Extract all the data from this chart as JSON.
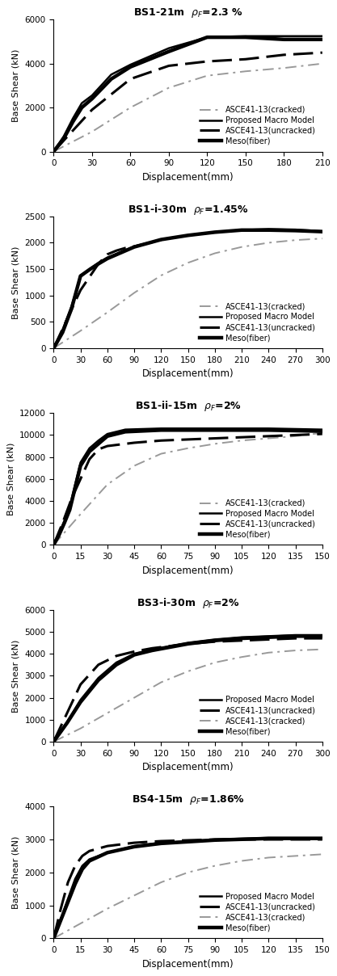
{
  "panels": [
    {
      "title_parts": [
        "BS1-21m  ",
        "2.3 %"
      ],
      "xlim": [
        0,
        210
      ],
      "ylim": [
        0,
        6000
      ],
      "xticks": [
        0,
        30,
        60,
        90,
        120,
        150,
        180,
        210
      ],
      "yticks": [
        0,
        2000,
        4000,
        6000
      ],
      "xlabel": "Displacement(mm)",
      "ylabel": "Base Shear (kN)",
      "legend_order": [
        "cracked",
        "macro",
        "uncracked",
        "meso"
      ],
      "legend_loc": "lower right",
      "curves": {
        "cracked": {
          "x": [
            0,
            30,
            60,
            90,
            120,
            150,
            180,
            210
          ],
          "y": [
            0,
            900,
            2000,
            2900,
            3450,
            3650,
            3800,
            4000
          ]
        },
        "macro": {
          "x": [
            0,
            8,
            15,
            22,
            30,
            45,
            60,
            90,
            120,
            150,
            180,
            210
          ],
          "y": [
            0,
            700,
            1500,
            2200,
            2550,
            3500,
            3950,
            4700,
            5200,
            5250,
            5250,
            5250
          ]
        },
        "uncracked": {
          "x": [
            0,
            30,
            60,
            90,
            120,
            150,
            180,
            210
          ],
          "y": [
            0,
            1900,
            3300,
            3900,
            4100,
            4200,
            4400,
            4500
          ]
        },
        "meso": {
          "x": [
            0,
            8,
            15,
            22,
            30,
            45,
            60,
            90,
            120,
            150,
            180,
            210
          ],
          "y": [
            0,
            600,
            1350,
            2000,
            2400,
            3300,
            3850,
            4550,
            5200,
            5200,
            5100,
            5100
          ]
        }
      }
    },
    {
      "title_parts": [
        "BS1-i-30m  ",
        "1.45%"
      ],
      "xlim": [
        0,
        300
      ],
      "ylim": [
        0,
        2500
      ],
      "xticks": [
        0,
        30,
        60,
        90,
        120,
        150,
        180,
        210,
        240,
        270,
        300
      ],
      "yticks": [
        0,
        500,
        1000,
        1500,
        2000,
        2500
      ],
      "xlabel": "Displacement(mm)",
      "ylabel": "Base Shear (kN)",
      "legend_order": [
        "cracked",
        "macro",
        "uncracked",
        "meso"
      ],
      "legend_loc": "lower right",
      "curves": {
        "cracked": {
          "x": [
            0,
            30,
            60,
            90,
            120,
            150,
            180,
            210,
            240,
            270,
            300
          ],
          "y": [
            0,
            330,
            680,
            1050,
            1380,
            1620,
            1800,
            1920,
            2000,
            2050,
            2080
          ]
        },
        "macro": {
          "x": [
            0,
            10,
            20,
            30,
            40,
            50,
            60,
            90,
            120,
            150,
            180,
            210,
            240,
            270,
            300
          ],
          "y": [
            0,
            350,
            800,
            1350,
            1500,
            1620,
            1720,
            1930,
            2060,
            2140,
            2200,
            2240,
            2260,
            2250,
            2220
          ]
        },
        "uncracked": {
          "x": [
            0,
            30,
            50,
            60,
            70,
            80,
            90,
            120
          ],
          "y": [
            0,
            1100,
            1600,
            1780,
            1850,
            1900,
            1930,
            2050
          ]
        },
        "meso": {
          "x": [
            0,
            10,
            20,
            30,
            40,
            50,
            60,
            90,
            120,
            150,
            180,
            210,
            240,
            270,
            300
          ],
          "y": [
            0,
            300,
            750,
            1370,
            1490,
            1600,
            1700,
            1920,
            2060,
            2140,
            2200,
            2240,
            2240,
            2230,
            2210
          ]
        }
      }
    },
    {
      "title_parts": [
        "BS1-ii-15m  ",
        "2%"
      ],
      "xlim": [
        0,
        150
      ],
      "ylim": [
        0,
        12000
      ],
      "xticks": [
        0,
        15,
        30,
        45,
        60,
        75,
        90,
        105,
        120,
        135,
        150
      ],
      "yticks": [
        0,
        2000,
        4000,
        6000,
        8000,
        10000,
        12000
      ],
      "xlabel": "Displacement(mm)",
      "ylabel": "Base Shear (kN)",
      "legend_order": [
        "cracked",
        "macro",
        "uncracked",
        "meso"
      ],
      "legend_loc": "lower right",
      "curves": {
        "cracked": {
          "x": [
            0,
            15,
            30,
            45,
            60,
            75,
            90,
            105,
            120,
            135,
            150
          ],
          "y": [
            0,
            2800,
            5500,
            7200,
            8300,
            8800,
            9200,
            9500,
            9700,
            9900,
            10200
          ]
        },
        "macro": {
          "x": [
            0,
            3,
            6,
            9,
            12,
            15,
            20,
            25,
            30,
            40,
            60,
            90,
            120,
            150
          ],
          "y": [
            0,
            1000,
            2200,
            3500,
            5500,
            7500,
            8800,
            9500,
            10100,
            10500,
            10600,
            10600,
            10600,
            10500
          ]
        },
        "uncracked": {
          "x": [
            0,
            5,
            10,
            15,
            20,
            25,
            30,
            45,
            60,
            90,
            120,
            150
          ],
          "y": [
            0,
            2000,
            4200,
            6000,
            7800,
            8700,
            9000,
            9300,
            9500,
            9700,
            9900,
            10100
          ]
        },
        "meso": {
          "x": [
            0,
            3,
            6,
            9,
            12,
            15,
            20,
            25,
            30,
            40,
            60,
            90,
            120,
            150
          ],
          "y": [
            0,
            900,
            2000,
            3200,
            5200,
            7200,
            8500,
            9200,
            9900,
            10300,
            10450,
            10450,
            10450,
            10350
          ]
        }
      }
    },
    {
      "title_parts": [
        "BS3-i-30m  ",
        "2%"
      ],
      "xlim": [
        0,
        300
      ],
      "ylim": [
        0,
        6000
      ],
      "xticks": [
        0,
        30,
        60,
        90,
        120,
        150,
        180,
        210,
        240,
        270,
        300
      ],
      "yticks": [
        0,
        1000,
        2000,
        3000,
        4000,
        5000,
        6000
      ],
      "xlabel": "Displacement(mm)",
      "ylabel": "Base Shear (kN)",
      "legend_order": [
        "macro",
        "uncracked",
        "cracked",
        "meso"
      ],
      "legend_loc": "lower right",
      "curves": {
        "cracked": {
          "x": [
            0,
            30,
            60,
            90,
            120,
            150,
            180,
            210,
            240,
            270,
            300
          ],
          "y": [
            0,
            600,
            1300,
            2000,
            2700,
            3200,
            3600,
            3850,
            4050,
            4150,
            4200
          ]
        },
        "macro": {
          "x": [
            0,
            15,
            30,
            50,
            70,
            90,
            110,
            130,
            150,
            180,
            210,
            240,
            270,
            300
          ],
          "y": [
            0,
            900,
            1900,
            2900,
            3600,
            4000,
            4200,
            4350,
            4500,
            4650,
            4750,
            4800,
            4850,
            4850
          ]
        },
        "uncracked": {
          "x": [
            0,
            15,
            30,
            50,
            70,
            90,
            110,
            130,
            150,
            180,
            210,
            240,
            270,
            300
          ],
          "y": [
            0,
            1300,
            2600,
            3500,
            3900,
            4100,
            4250,
            4350,
            4450,
            4550,
            4600,
            4650,
            4700,
            4700
          ]
        },
        "meso": {
          "x": [
            0,
            15,
            30,
            50,
            70,
            90,
            110,
            130,
            150,
            180,
            210,
            240,
            270,
            300
          ],
          "y": [
            0,
            850,
            1800,
            2800,
            3500,
            3950,
            4150,
            4300,
            4450,
            4600,
            4700,
            4750,
            4800,
            4800
          ]
        }
      }
    },
    {
      "title_parts": [
        "BS4-15m  ",
        "1.86%"
      ],
      "xlim": [
        0,
        150
      ],
      "ylim": [
        0,
        4000
      ],
      "xticks": [
        0,
        15,
        30,
        45,
        60,
        75,
        90,
        105,
        120,
        135,
        150
      ],
      "yticks": [
        0,
        1000,
        2000,
        3000,
        4000
      ],
      "xlabel": "Displacement(mm)",
      "ylabel": "Base Shear (kN)",
      "legend_order": [
        "macro",
        "uncracked",
        "cracked",
        "meso"
      ],
      "legend_loc": "lower right",
      "curves": {
        "cracked": {
          "x": [
            0,
            15,
            30,
            45,
            60,
            75,
            90,
            105,
            120,
            135,
            150
          ],
          "y": [
            0,
            450,
            900,
            1300,
            1700,
            2000,
            2200,
            2350,
            2450,
            2500,
            2550
          ]
        },
        "macro": {
          "x": [
            0,
            4,
            8,
            12,
            16,
            20,
            30,
            45,
            60,
            90,
            120,
            150
          ],
          "y": [
            0,
            600,
            1200,
            1800,
            2200,
            2400,
            2600,
            2800,
            2900,
            3000,
            3050,
            3050
          ]
        },
        "uncracked": {
          "x": [
            0,
            4,
            8,
            12,
            16,
            20,
            30,
            45,
            60,
            90,
            120,
            150
          ],
          "y": [
            0,
            900,
            1700,
            2200,
            2500,
            2650,
            2800,
            2900,
            2950,
            3000,
            3000,
            3000
          ]
        },
        "meso": {
          "x": [
            0,
            4,
            8,
            12,
            16,
            20,
            30,
            45,
            60,
            90,
            120,
            150
          ],
          "y": [
            0,
            550,
            1100,
            1650,
            2100,
            2350,
            2600,
            2780,
            2880,
            2980,
            3030,
            3030
          ]
        }
      }
    }
  ],
  "legend_labels": {
    "cracked": "ASCE41-13(cracked)",
    "macro": "Proposed Macro Model",
    "uncracked": "ASCE41-13(uncracked)",
    "meso": "Meso(fiber)"
  },
  "curve_styles": {
    "cracked": {
      "color": "#999999",
      "lw": 1.4,
      "dash": [
        7,
        3,
        1.5,
        3
      ]
    },
    "macro": {
      "color": "#000000",
      "lw": 1.8,
      "dash": null
    },
    "uncracked": {
      "color": "#000000",
      "lw": 2.2,
      "dash": [
        8,
        3
      ]
    },
    "meso": {
      "color": "#000000",
      "lw": 3.2,
      "dash": null
    }
  }
}
